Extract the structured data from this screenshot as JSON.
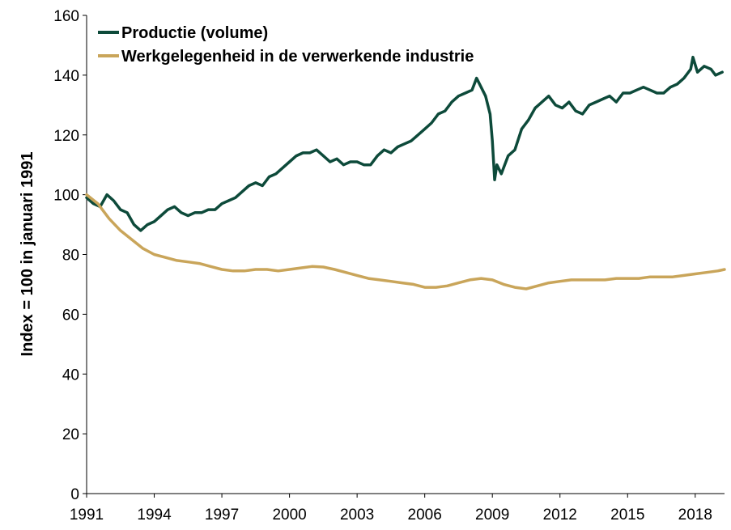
{
  "chart_data": {
    "type": "line",
    "title": "",
    "xlabel": "",
    "ylabel": "Index = 100 in januari 1991",
    "ylim": [
      0,
      160
    ],
    "xlim": [
      1991,
      2019.3
    ],
    "y_ticks": [
      "0",
      "20",
      "40",
      "60",
      "80",
      "100",
      "120",
      "140",
      "160"
    ],
    "x_ticks": [
      "1991",
      "1994",
      "1997",
      "2000",
      "2003",
      "2006",
      "2009",
      "2012",
      "2015",
      "2018"
    ],
    "grid": false,
    "legend_position": "top-left",
    "series": [
      {
        "name": "Productie (volume)",
        "color": "#0d4a3a",
        "x": [
          1991.0,
          1991.3,
          1991.6,
          1991.9,
          1992.2,
          1992.5,
          1992.8,
          1993.1,
          1993.4,
          1993.7,
          1994.0,
          1994.3,
          1994.6,
          1994.9,
          1995.2,
          1995.5,
          1995.8,
          1996.1,
          1996.4,
          1996.7,
          1997.0,
          1997.3,
          1997.6,
          1997.9,
          1998.2,
          1998.5,
          1998.8,
          1999.1,
          1999.4,
          1999.7,
          2000.0,
          2000.3,
          2000.6,
          2000.9,
          2001.2,
          2001.5,
          2001.8,
          2002.1,
          2002.4,
          2002.7,
          2003.0,
          2003.3,
          2003.6,
          2003.9,
          2004.2,
          2004.5,
          2004.8,
          2005.1,
          2005.4,
          2005.7,
          2006.0,
          2006.3,
          2006.6,
          2006.9,
          2007.2,
          2007.5,
          2007.8,
          2008.1,
          2008.3,
          2008.5,
          2008.7,
          2008.9,
          2009.0,
          2009.1,
          2009.2,
          2009.4,
          2009.7,
          2010.0,
          2010.3,
          2010.6,
          2010.9,
          2011.2,
          2011.5,
          2011.8,
          2012.1,
          2012.4,
          2012.7,
          2013.0,
          2013.3,
          2013.6,
          2013.9,
          2014.2,
          2014.5,
          2014.8,
          2015.1,
          2015.4,
          2015.7,
          2016.0,
          2016.3,
          2016.6,
          2016.9,
          2017.2,
          2017.5,
          2017.8,
          2017.9,
          2018.1,
          2018.4,
          2018.7,
          2018.9,
          2019.2
        ],
        "values": [
          99,
          97,
          96,
          100,
          98,
          95,
          94,
          90,
          88,
          90,
          91,
          93,
          95,
          96,
          94,
          93,
          94,
          94,
          95,
          95,
          97,
          98,
          99,
          101,
          103,
          104,
          103,
          106,
          107,
          109,
          111,
          113,
          114,
          114,
          115,
          113,
          111,
          112,
          110,
          111,
          111,
          110,
          110,
          113,
          115,
          114,
          116,
          117,
          118,
          120,
          122,
          124,
          127,
          128,
          131,
          133,
          134,
          135,
          139,
          136,
          133,
          127,
          118,
          105,
          110,
          107,
          113,
          115,
          122,
          125,
          129,
          131,
          133,
          130,
          129,
          131,
          128,
          127,
          130,
          131,
          132,
          133,
          131,
          134,
          134,
          135,
          136,
          135,
          134,
          134,
          136,
          137,
          139,
          142,
          146,
          141,
          143,
          142,
          140,
          141
        ]
      },
      {
        "name": "Werkgelegenheid in de verwerkende industrie",
        "color": "#c9a55a",
        "x": [
          1991.0,
          1991.5,
          1992.0,
          1992.5,
          1993.0,
          1993.5,
          1994.0,
          1994.5,
          1995.0,
          1995.5,
          1996.0,
          1996.5,
          1997.0,
          1997.5,
          1998.0,
          1998.5,
          1999.0,
          1999.5,
          2000.0,
          2000.5,
          2001.0,
          2001.5,
          2002.0,
          2002.5,
          2003.0,
          2003.5,
          2004.0,
          2004.5,
          2005.0,
          2005.5,
          2006.0,
          2006.5,
          2007.0,
          2007.5,
          2008.0,
          2008.5,
          2009.0,
          2009.5,
          2010.0,
          2010.5,
          2011.0,
          2011.5,
          2012.0,
          2012.5,
          2013.0,
          2013.5,
          2014.0,
          2014.5,
          2015.0,
          2015.5,
          2016.0,
          2016.5,
          2017.0,
          2017.5,
          2018.0,
          2018.5,
          2019.0,
          2019.3
        ],
        "values": [
          100,
          97,
          92,
          88,
          85,
          82,
          80,
          79,
          78,
          77.5,
          77,
          76,
          75,
          74.5,
          74.5,
          75,
          75,
          74.5,
          75,
          75.5,
          76,
          75.8,
          75,
          74,
          73,
          72,
          71.5,
          71,
          70.5,
          70,
          69,
          69,
          69.5,
          70.5,
          71.5,
          72,
          71.5,
          70,
          69,
          68.5,
          69.5,
          70.5,
          71,
          71.5,
          71.5,
          71.5,
          71.5,
          72,
          72,
          72,
          72.5,
          72.5,
          72.5,
          73,
          73.5,
          74,
          74.5,
          75
        ]
      }
    ]
  }
}
